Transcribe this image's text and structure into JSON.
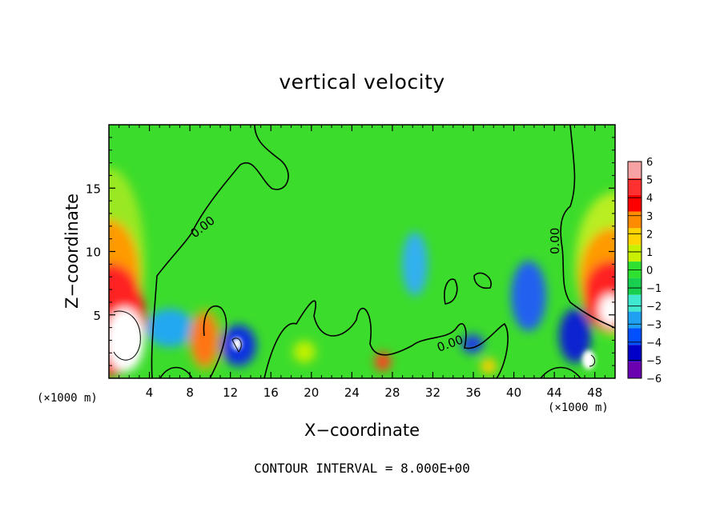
{
  "chart_data": {
    "type": "heatmap",
    "title": "vertical velocity",
    "xlabel": "X−coordinate",
    "ylabel": "Z−coordinate",
    "x_unit_left": "(×1000 m)",
    "x_unit_right": "(×1000 m)",
    "xlim": [
      0,
      50
    ],
    "ylim": [
      0,
      20
    ],
    "x_ticks": [
      4,
      8,
      12,
      16,
      20,
      24,
      28,
      32,
      36,
      40,
      44,
      48
    ],
    "y_ticks": [
      5,
      10,
      15
    ],
    "colorbar": {
      "levels": [
        6,
        5,
        4,
        3,
        2,
        1,
        0,
        "−1",
        "−2",
        "−3",
        "−4",
        "−5",
        "−6"
      ],
      "colors": [
        "#f7a3a3",
        "#ff3030",
        "#ff0000",
        "#ff8c00",
        "#ffd400",
        "#c8f000",
        "#30e030",
        "#18d050",
        "#40e8d0",
        "#20a0f0",
        "#0050ff",
        "#0000c8",
        "#6a00b0"
      ]
    },
    "contour_labels": [
      "0.00",
      "0.00",
      "0.00"
    ],
    "footer": "CONTOUR INTERVAL = 8.000E+00"
  },
  "colors": {
    "background_field": "#44dd2a",
    "updraft": "#ff2a2a",
    "downdraft": "#1a6cff",
    "extreme": "#ffffff"
  }
}
